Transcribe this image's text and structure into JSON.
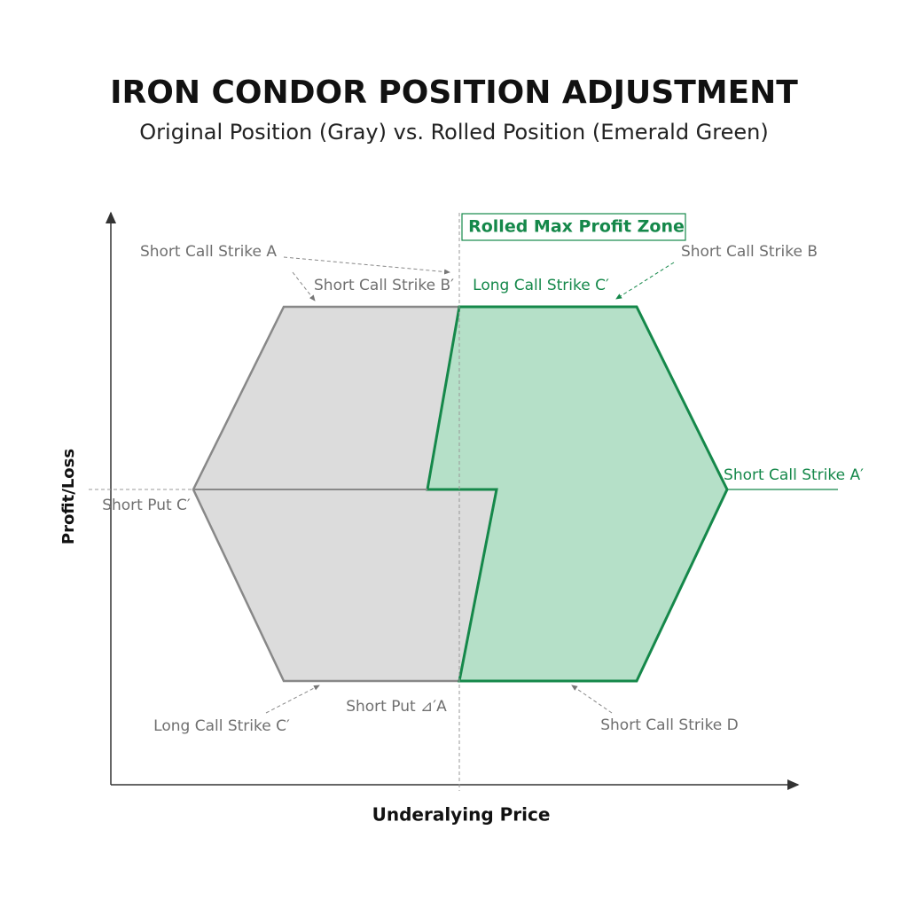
{
  "header": {
    "title": "IRON CONDOR POSITION ADJUSTMENT",
    "subtitle": "Original Position (Gray) vs. Rolled Position (Emerald Green)"
  },
  "axes": {
    "y_label": "Profit/Loss",
    "x_label": "Underalying Price"
  },
  "zone_label": "Rolled Max Profit Zone",
  "annotations": [
    "Short Call Strike A",
    "Short Call Strike B′",
    "Long Call Strike C′",
    "Short Call Strike B",
    "Short Call Strike A′",
    "Short Put C′",
    "Short Put ⊿′A",
    "Long Call Strike C′",
    "Short Call Strike D"
  ]
}
